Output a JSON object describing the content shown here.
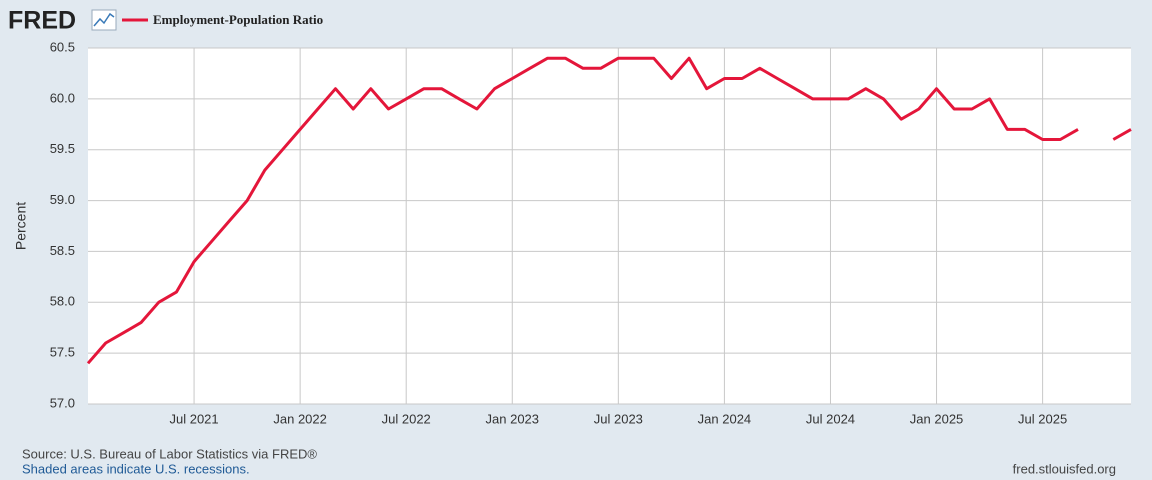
{
  "logo": "FRED",
  "chart_data": {
    "type": "line",
    "y_label": "Percent",
    "x": [
      "2021-01",
      "2021-02",
      "2021-03",
      "2021-04",
      "2021-05",
      "2021-06",
      "2021-07",
      "2021-08",
      "2021-09",
      "2021-10",
      "2021-11",
      "2021-12",
      "2022-01",
      "2022-02",
      "2022-03",
      "2022-04",
      "2022-05",
      "2022-06",
      "2022-07",
      "2022-08",
      "2022-09",
      "2022-10",
      "2022-11",
      "2022-12",
      "2023-01",
      "2023-02",
      "2023-03",
      "2023-04",
      "2023-05",
      "2023-06",
      "2023-07",
      "2023-08",
      "2023-09",
      "2023-10",
      "2023-11",
      "2023-12",
      "2024-01",
      "2024-02",
      "2024-03",
      "2024-04",
      "2024-05",
      "2024-06",
      "2024-07",
      "2024-08",
      "2024-09",
      "2024-10",
      "2024-11",
      "2024-12",
      "2025-01",
      "2025-02",
      "2025-03",
      "2025-04",
      "2025-05",
      "2025-06",
      "2025-07",
      "2025-08",
      "2025-09",
      "2025-10",
      "2025-11",
      "2025-12"
    ],
    "series": [
      {
        "name": "Employment-Population Ratio",
        "color": "#e4163a",
        "values": [
          57.4,
          57.6,
          57.7,
          57.8,
          58.0,
          58.1,
          58.4,
          58.6,
          58.8,
          59.0,
          59.3,
          59.5,
          59.7,
          59.9,
          60.1,
          59.9,
          60.1,
          59.9,
          60.0,
          60.1,
          60.1,
          60.0,
          59.9,
          60.1,
          60.2,
          60.3,
          60.4,
          60.4,
          60.3,
          60.3,
          60.4,
          60.4,
          60.4,
          60.2,
          60.4,
          60.1,
          60.2,
          60.2,
          60.3,
          60.2,
          60.1,
          60.0,
          60.0,
          60.0,
          60.1,
          60.0,
          59.8,
          59.9,
          60.1,
          59.9,
          59.9,
          60.0,
          59.7,
          59.7,
          59.6,
          59.6,
          59.7,
          null,
          59.6,
          59.7
        ]
      }
    ],
    "xlim": [
      "2021-01",
      "2025-12"
    ],
    "xticks": [
      {
        "value": "2021-07",
        "label": "Jul 2021"
      },
      {
        "value": "2022-01",
        "label": "Jan 2022"
      },
      {
        "value": "2022-07",
        "label": "Jul 2022"
      },
      {
        "value": "2023-01",
        "label": "Jan 2023"
      },
      {
        "value": "2023-07",
        "label": "Jul 2023"
      },
      {
        "value": "2024-01",
        "label": "Jan 2024"
      },
      {
        "value": "2024-07",
        "label": "Jul 2024"
      },
      {
        "value": "2025-01",
        "label": "Jan 2025"
      },
      {
        "value": "2025-07",
        "label": "Jul 2025"
      }
    ],
    "ylim": [
      57.0,
      60.5
    ],
    "yticks": [
      {
        "value": 57,
        "label": "57.0"
      },
      57.5,
      {
        "value": 58,
        "label": "58.0"
      },
      58.5,
      {
        "value": 59,
        "label": "59.0"
      },
      59.5,
      {
        "value": 60,
        "label": "60.0"
      },
      60.5
    ],
    "grid": true
  },
  "footer": {
    "source": "Source: U.S. Bureau of Labor Statistics via FRED®",
    "recessions": "Shaded areas indicate U.S. recessions.",
    "url": "fred.stlouisfed.org"
  }
}
